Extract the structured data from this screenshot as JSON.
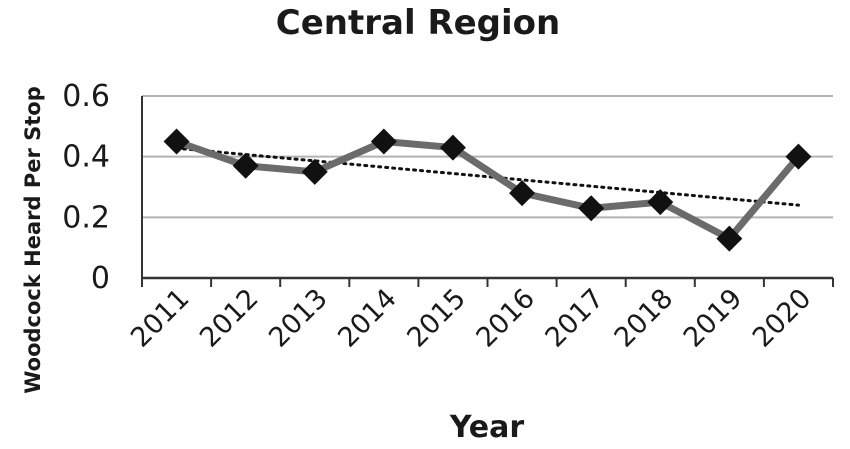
{
  "chart_data": {
    "type": "line",
    "title": "Central Region",
    "xlabel": "Year",
    "ylabel": "Woodcock Heard Per Stop",
    "categories": [
      "2011",
      "2012",
      "2013",
      "2014",
      "2015",
      "2016",
      "2017",
      "2018",
      "2019",
      "2020"
    ],
    "series": [
      {
        "values": [
          0.45,
          0.37,
          0.35,
          0.45,
          0.43,
          0.28,
          0.23,
          0.25,
          0.13,
          0.4
        ]
      }
    ],
    "trendline": {
      "type": "linear",
      "style": "dotted"
    },
    "ylim": [
      0,
      0.6
    ],
    "yticks": [
      "0",
      "0.2",
      "0.4",
      "0.6"
    ],
    "grid": true,
    "legend": "none",
    "colors": {
      "line": "#6b6b6b",
      "marker": "#111111",
      "trend": "#111111",
      "grid": "#b3b3b3",
      "axis": "#333333"
    }
  }
}
